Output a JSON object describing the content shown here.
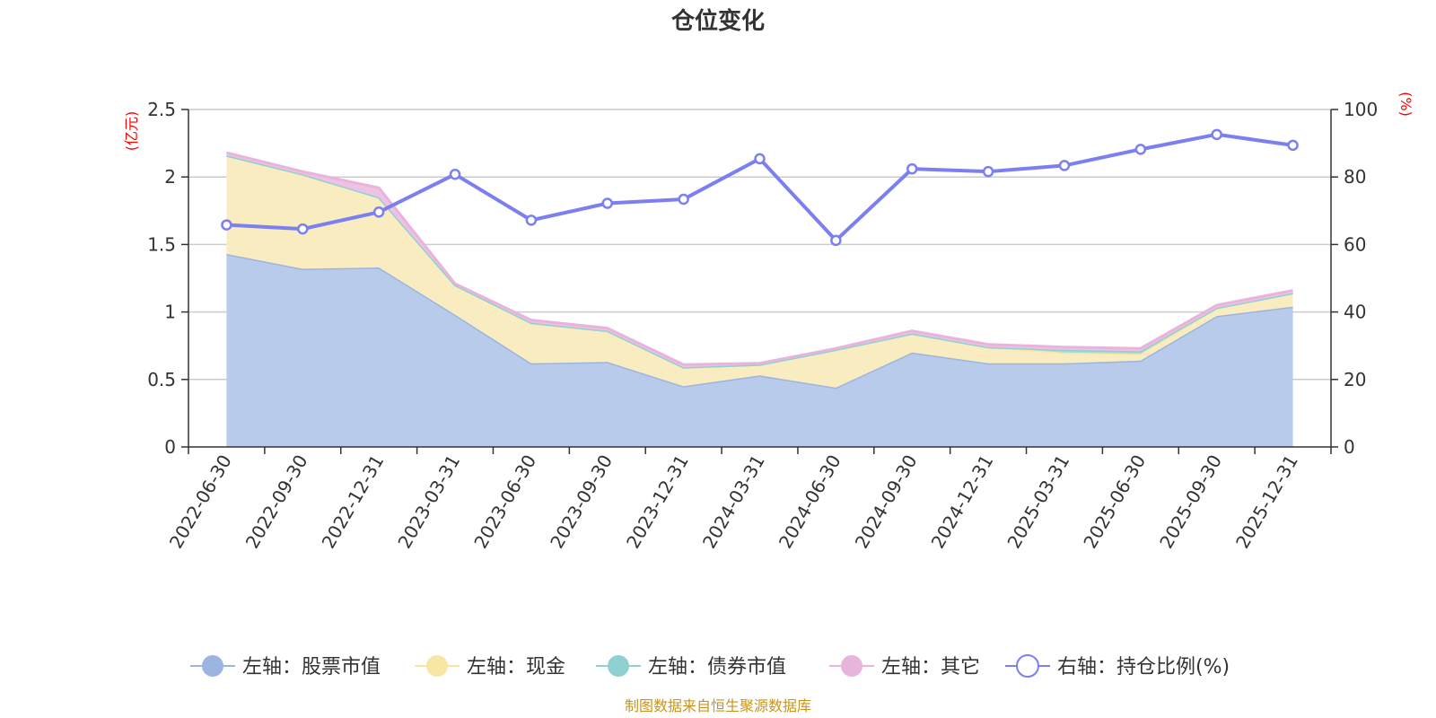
{
  "chart_data": {
    "type": "area",
    "title": "仓位变化",
    "left_axis": {
      "unit": "(亿元)",
      "ylim": [
        0,
        2.5
      ],
      "ticks": [
        "0",
        "0.5",
        "1",
        "1.5",
        "2",
        "2.5"
      ]
    },
    "right_axis": {
      "unit": "(%)",
      "ylim": [
        0,
        100
      ],
      "ticks": [
        "0",
        "20",
        "40",
        "60",
        "80",
        "100"
      ]
    },
    "categories": [
      "2022-06-30",
      "2022-09-30",
      "2022-12-31",
      "2023-03-31",
      "2023-06-30",
      "2023-09-30",
      "2023-12-31",
      "2024-03-31",
      "2024-06-30",
      "2024-09-30",
      "2024-12-31",
      "2025-03-31",
      "2025-06-30",
      "2025-09-30",
      "2025-12-31"
    ],
    "grid": true,
    "legend_position": "bottom",
    "series": [
      {
        "name": "左轴：股票市值",
        "axis": "left",
        "kind": "stacked-area",
        "color": "#9bb5e0",
        "fill": "#b8cbea",
        "values": [
          1.43,
          1.32,
          1.33,
          0.98,
          0.62,
          0.63,
          0.45,
          0.53,
          0.44,
          0.7,
          0.62,
          0.62,
          0.64,
          0.97,
          1.04
        ]
      },
      {
        "name": "左轴：现金",
        "axis": "left",
        "kind": "stacked-area",
        "color": "#f7e6a4",
        "fill": "#f9ecc0",
        "values": [
          0.73,
          0.7,
          0.52,
          0.22,
          0.3,
          0.23,
          0.14,
          0.08,
          0.28,
          0.14,
          0.12,
          0.08,
          0.05,
          0.06,
          0.1
        ]
      },
      {
        "name": "左轴：债券市值",
        "axis": "left",
        "kind": "stacked-area",
        "color": "#8fd1d1",
        "fill": "#a8dada",
        "values": [
          0,
          0,
          0,
          0,
          0,
          0,
          0,
          0,
          0,
          0,
          0,
          0.02,
          0.02,
          0,
          0
        ]
      },
      {
        "name": "左轴：其它",
        "axis": "left",
        "kind": "stacked-area",
        "color": "#e8b4dc",
        "fill": "#eec2e4",
        "values": [
          0.02,
          0.02,
          0.07,
          0.01,
          0.02,
          0.02,
          0.02,
          0.01,
          0.01,
          0.02,
          0.02,
          0.02,
          0.02,
          0.02,
          0.02
        ]
      },
      {
        "name": "右轴：持仓比例(%)",
        "axis": "right",
        "kind": "line",
        "color": "#7b7ff0",
        "values": [
          65.8,
          64.6,
          69.6,
          80.8,
          67.2,
          72.2,
          73.4,
          85.4,
          61.2,
          82.4,
          81.6,
          83.4,
          88.2,
          92.6,
          89.4
        ]
      }
    ],
    "source": "制图数据来自恒生聚源数据库"
  }
}
